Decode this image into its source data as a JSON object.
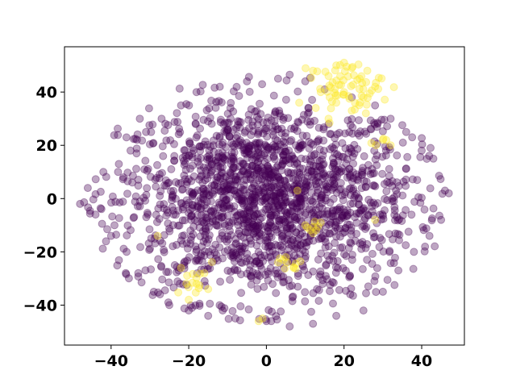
{
  "chart_data": {
    "type": "scatter",
    "title": "",
    "xlabel": "",
    "ylabel": "",
    "xlim": [
      -52,
      51
    ],
    "ylim": [
      -55,
      57
    ],
    "xticks": [
      -40,
      -20,
      0,
      20,
      40
    ],
    "yticks": [
      -40,
      -20,
      0,
      20,
      40
    ],
    "xtick_labels": [
      "−40",
      "−20",
      "0",
      "20",
      "40"
    ],
    "ytick_labels": [
      "−40",
      "−20",
      "0",
      "20",
      "40"
    ],
    "grid": false,
    "legend": "none",
    "marker_alpha": 0.35,
    "series": [
      {
        "color": "#440154",
        "approx_count": 1850,
        "distribution": "roughly elliptical cloud spanning x -48..47, y -49..46, densest near origin",
        "sample_points": [
          [
            -48,
            -2
          ],
          [
            -46,
            4
          ],
          [
            -44,
            -6
          ],
          [
            -42,
            10
          ],
          [
            -40,
            -14
          ],
          [
            -38,
            13
          ],
          [
            -36,
            -20
          ],
          [
            -35,
            18
          ],
          [
            -33,
            -28
          ],
          [
            -31,
            25
          ],
          [
            -29,
            -35
          ],
          [
            -27,
            30
          ],
          [
            -25,
            -40
          ],
          [
            -22,
            35
          ],
          [
            -20,
            -42
          ],
          [
            -18,
            40
          ],
          [
            -15,
            -44
          ],
          [
            -12,
            42
          ],
          [
            -8,
            -45
          ],
          [
            -5,
            44
          ],
          [
            0,
            -46
          ],
          [
            3,
            45
          ],
          [
            6,
            -48
          ],
          [
            10,
            44
          ],
          [
            12,
            -47
          ],
          [
            15,
            41
          ],
          [
            18,
            -44
          ],
          [
            22,
            38
          ],
          [
            25,
            -42
          ],
          [
            28,
            35
          ],
          [
            30,
            -35
          ],
          [
            32,
            30
          ],
          [
            34,
            -27
          ],
          [
            36,
            25
          ],
          [
            38,
            -20
          ],
          [
            40,
            18
          ],
          [
            42,
            -14
          ],
          [
            43,
            15
          ],
          [
            45,
            -8
          ],
          [
            46,
            3
          ],
          [
            47,
            2
          ]
        ]
      },
      {
        "color": "#fde725",
        "approx_count": 110,
        "distribution": "main cluster near x 14..30, y 30..51; small groups near (-18,-32), (5,-25), (12,-12), (30,22), (-28,-14), (-2,-46)",
        "sample_points": [
          [
            12,
            48
          ],
          [
            16,
            46
          ],
          [
            18,
            50
          ],
          [
            20,
            51
          ],
          [
            22,
            49
          ],
          [
            24,
            45
          ],
          [
            26,
            48
          ],
          [
            28,
            42
          ],
          [
            20,
            40
          ],
          [
            18,
            36
          ],
          [
            22,
            33
          ],
          [
            25,
            38
          ],
          [
            14,
            40
          ],
          [
            16,
            30
          ],
          [
            -20,
            -38
          ],
          [
            -18,
            -32
          ],
          [
            -16,
            -28
          ],
          [
            -15,
            -34
          ],
          [
            -22,
            -26
          ],
          [
            3,
            -24
          ],
          [
            5,
            -22
          ],
          [
            7,
            -26
          ],
          [
            10,
            -10
          ],
          [
            12,
            -13
          ],
          [
            14,
            -9
          ],
          [
            28,
            -8
          ],
          [
            30,
            22
          ],
          [
            32,
            20
          ],
          [
            -28,
            -14
          ],
          [
            -2,
            -46
          ],
          [
            -1,
            -45
          ],
          [
            8,
            3
          ]
        ]
      }
    ]
  }
}
